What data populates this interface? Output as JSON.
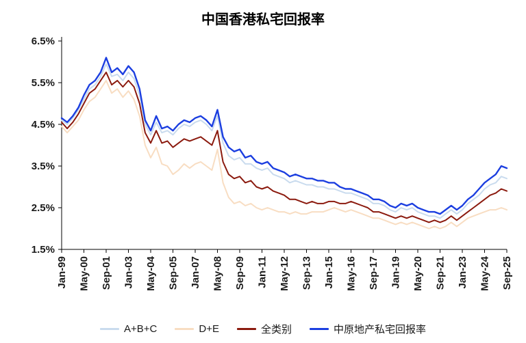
{
  "chart_data": {
    "type": "line",
    "title": "中国香港私宅回报率",
    "xlabel": "",
    "ylabel": "",
    "ylim": [
      1.5,
      6.5
    ],
    "y_tick_labels": [
      "1.5%",
      "2.5%",
      "3.5%",
      "4.5%",
      "5.5%",
      "6.5%"
    ],
    "x_start": "Jan-99",
    "x_end": "Sep-25",
    "x_interval_months": 4,
    "points_per_tick": 4,
    "x_tick_labels": [
      "Jan-99",
      "May-00",
      "Sep-01",
      "Jan-03",
      "May-04",
      "Sep-05",
      "Jan-07",
      "May-08",
      "Sep-09",
      "Jan-11",
      "May-12",
      "Sep-13",
      "Jan-15",
      "May-16",
      "Sep-17",
      "Jan-19",
      "May-20",
      "Sep-21",
      "Jan-23",
      "May-24",
      "Sep-25"
    ],
    "grid": false,
    "legend_position": "bottom",
    "series": [
      {
        "id": "abc",
        "name": "A+B+C",
        "color": "#c9dbee",
        "values": [
          4.6,
          4.5,
          4.65,
          4.85,
          5.1,
          5.35,
          5.45,
          5.65,
          5.95,
          5.65,
          5.7,
          5.55,
          5.75,
          5.6,
          5.2,
          4.5,
          4.25,
          4.55,
          4.3,
          4.35,
          4.25,
          4.4,
          4.5,
          4.45,
          4.55,
          4.6,
          4.5,
          4.35,
          4.7,
          4.05,
          3.75,
          3.65,
          3.7,
          3.55,
          3.55,
          3.45,
          3.4,
          3.45,
          3.3,
          3.25,
          3.2,
          3.1,
          3.15,
          3.1,
          3.05,
          3.05,
          3.0,
          3.0,
          2.95,
          2.95,
          2.9,
          2.85,
          2.85,
          2.8,
          2.75,
          2.7,
          2.6,
          2.6,
          2.55,
          2.45,
          2.4,
          2.5,
          2.45,
          2.5,
          2.4,
          2.35,
          2.3,
          2.3,
          2.25,
          2.35,
          2.45,
          2.35,
          2.45,
          2.6,
          2.7,
          2.8,
          2.95,
          3.05,
          3.1,
          3.25,
          3.2
        ]
      },
      {
        "id": "de",
        "name": "D+E",
        "color": "#f8ddc2",
        "values": [
          4.45,
          4.3,
          4.45,
          4.6,
          4.85,
          5.05,
          5.15,
          5.35,
          5.55,
          5.25,
          5.35,
          5.15,
          5.3,
          5.1,
          4.7,
          4.0,
          3.7,
          3.95,
          3.55,
          3.5,
          3.3,
          3.4,
          3.55,
          3.45,
          3.55,
          3.6,
          3.5,
          3.4,
          3.9,
          3.1,
          2.75,
          2.6,
          2.65,
          2.55,
          2.6,
          2.5,
          2.45,
          2.5,
          2.45,
          2.4,
          2.4,
          2.35,
          2.4,
          2.35,
          2.35,
          2.4,
          2.4,
          2.4,
          2.45,
          2.5,
          2.45,
          2.4,
          2.45,
          2.4,
          2.35,
          2.3,
          2.25,
          2.25,
          2.2,
          2.15,
          2.1,
          2.15,
          2.1,
          2.15,
          2.1,
          2.05,
          2.0,
          2.05,
          2.0,
          2.05,
          2.15,
          2.05,
          2.15,
          2.25,
          2.3,
          2.35,
          2.4,
          2.45,
          2.45,
          2.5,
          2.45
        ]
      },
      {
        "id": "all",
        "name": "全类别",
        "color": "#8b1a0e",
        "values": [
          4.55,
          4.4,
          4.55,
          4.75,
          5.0,
          5.25,
          5.35,
          5.55,
          5.75,
          5.45,
          5.55,
          5.4,
          5.55,
          5.4,
          5.0,
          4.3,
          4.05,
          4.35,
          4.05,
          4.1,
          3.95,
          4.05,
          4.15,
          4.1,
          4.15,
          4.2,
          4.1,
          4.0,
          4.35,
          3.6,
          3.3,
          3.2,
          3.25,
          3.1,
          3.15,
          3.0,
          2.95,
          3.0,
          2.9,
          2.85,
          2.8,
          2.7,
          2.7,
          2.65,
          2.6,
          2.65,
          2.6,
          2.6,
          2.65,
          2.65,
          2.6,
          2.6,
          2.65,
          2.6,
          2.55,
          2.5,
          2.4,
          2.4,
          2.35,
          2.3,
          2.25,
          2.3,
          2.25,
          2.3,
          2.25,
          2.2,
          2.15,
          2.2,
          2.15,
          2.2,
          2.3,
          2.2,
          2.3,
          2.4,
          2.5,
          2.6,
          2.7,
          2.8,
          2.85,
          2.95,
          2.9
        ]
      },
      {
        "id": "centaline",
        "name": "中原地产私宅回报率",
        "color": "#1b3ee0",
        "values": [
          4.65,
          4.55,
          4.7,
          4.9,
          5.2,
          5.45,
          5.55,
          5.75,
          6.1,
          5.75,
          5.85,
          5.7,
          5.9,
          5.75,
          5.35,
          4.6,
          4.35,
          4.7,
          4.4,
          4.45,
          4.35,
          4.5,
          4.6,
          4.55,
          4.65,
          4.7,
          4.6,
          4.45,
          4.85,
          4.2,
          3.95,
          3.85,
          3.9,
          3.7,
          3.75,
          3.6,
          3.55,
          3.6,
          3.45,
          3.4,
          3.35,
          3.25,
          3.3,
          3.25,
          3.2,
          3.2,
          3.15,
          3.15,
          3.1,
          3.1,
          3.0,
          2.95,
          2.95,
          2.9,
          2.85,
          2.8,
          2.7,
          2.7,
          2.65,
          2.55,
          2.5,
          2.6,
          2.55,
          2.6,
          2.5,
          2.45,
          2.4,
          2.4,
          2.35,
          2.45,
          2.55,
          2.45,
          2.55,
          2.7,
          2.8,
          2.95,
          3.1,
          3.2,
          3.3,
          3.5,
          3.45
        ]
      }
    ]
  }
}
